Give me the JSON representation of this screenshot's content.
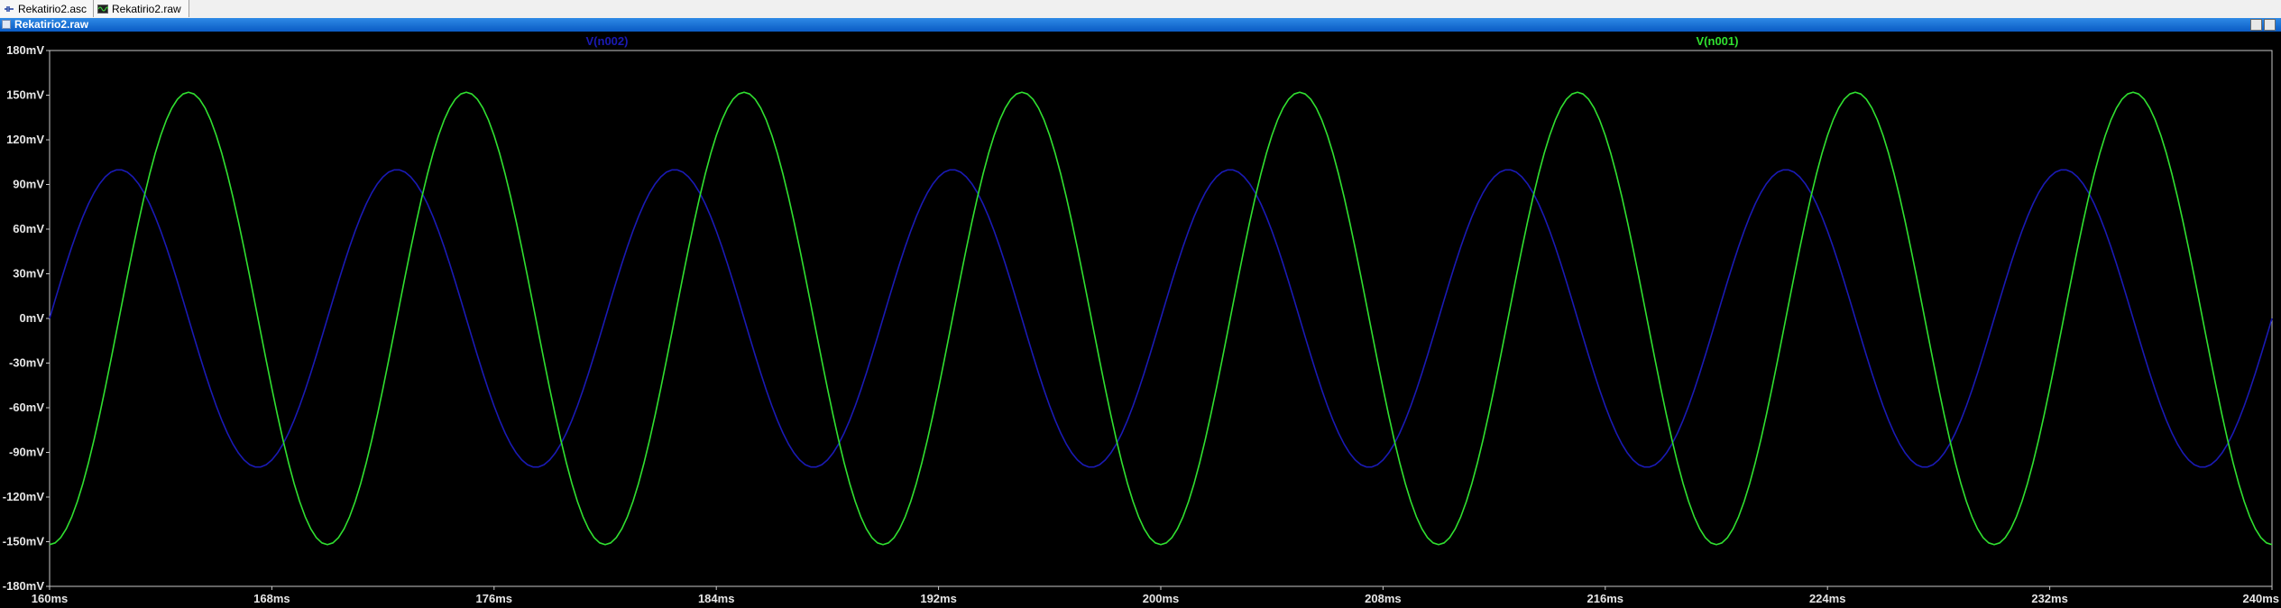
{
  "tabs": [
    {
      "label": "Rekatirio2.asc",
      "icon": "schematic-icon"
    },
    {
      "label": "Rekatirio2.raw",
      "icon": "waveform-icon"
    }
  ],
  "window": {
    "title": "Rekatirio2.raw"
  },
  "colors": {
    "background": "#000000",
    "grid_border": "#c8c8c8",
    "v_n002": "#1a1ab4",
    "v_n001": "#30e030",
    "text": "#e6e6e6"
  },
  "chart_data": {
    "type": "line",
    "xlabel": "",
    "ylabel": "",
    "xlim": [
      160,
      240
    ],
    "ylim": [
      -180,
      180
    ],
    "x_unit": "ms",
    "y_unit": "mV",
    "x_ticks": [
      "160ms",
      "168ms",
      "176ms",
      "184ms",
      "192ms",
      "200ms",
      "208ms",
      "216ms",
      "224ms",
      "232ms",
      "240ms"
    ],
    "y_ticks": [
      "180mV",
      "150mV",
      "120mV",
      "90mV",
      "60mV",
      "30mV",
      "0mV",
      "-30mV",
      "-60mV",
      "-90mV",
      "-120mV",
      "-150mV",
      "-180mV"
    ],
    "series": [
      {
        "name": "V(n002)",
        "color": "#1a1ab4",
        "waveform": "sine",
        "amplitude_mV": 100,
        "frequency_Hz": 100,
        "phase_deg": 0,
        "offset_mV": 0
      },
      {
        "name": "V(n001)",
        "color": "#30e030",
        "waveform": "sine",
        "amplitude_mV": 152,
        "frequency_Hz": 100,
        "phase_deg": -90,
        "offset_mV": 0
      }
    ],
    "grid": false,
    "legend_placement": "top"
  }
}
